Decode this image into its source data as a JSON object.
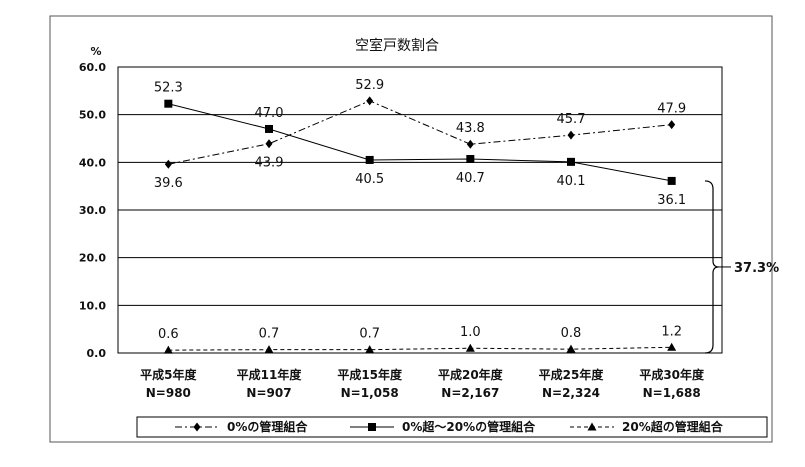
{
  "chart_data": {
    "type": "line",
    "title": "空室戸数割合",
    "ylabel": "%",
    "ylim": [
      0,
      60
    ],
    "yticks": [
      "0.0",
      "10.0",
      "20.0",
      "30.0",
      "40.0",
      "50.0",
      "60.0"
    ],
    "categories": [
      "平成5年度",
      "平成11年度",
      "平成15年度",
      "平成20年度",
      "平成25年度",
      "平成30年度"
    ],
    "category_sublabels": [
      "N=980",
      "N=907",
      "N=1,058",
      "N=2,167",
      "N=2,324",
      "N=1,688"
    ],
    "grid": true,
    "legend_position": "bottom",
    "series": [
      {
        "name": "0%の管理組合",
        "marker": "diamond",
        "line_style": "dash-dot",
        "values": [
          39.6,
          43.9,
          52.9,
          43.8,
          45.7,
          47.9
        ],
        "labels": [
          "39.6",
          "43.9",
          "52.9",
          "43.8",
          "45.7",
          "47.9"
        ],
        "label_side": [
          "below",
          "below",
          "above",
          "above",
          "above",
          "above"
        ]
      },
      {
        "name": "0%超～20%の管理組合",
        "marker": "square",
        "line_style": "solid",
        "values": [
          52.3,
          47.0,
          40.5,
          40.7,
          40.1,
          36.1
        ],
        "labels": [
          "52.3",
          "47.0",
          "40.5",
          "40.7",
          "40.1",
          "36.1"
        ],
        "label_side": [
          "above",
          "above",
          "below",
          "below",
          "below",
          "below"
        ]
      },
      {
        "name": "20%超の管理組合",
        "marker": "triangle",
        "line_style": "dashed",
        "values": [
          0.6,
          0.7,
          0.7,
          1.0,
          0.8,
          1.2
        ],
        "labels": [
          "0.6",
          "0.7",
          "0.7",
          "1.0",
          "0.8",
          "1.2"
        ],
        "label_side": [
          "above",
          "above",
          "above",
          "above",
          "above",
          "above"
        ]
      }
    ],
    "annotation": {
      "text": "37.3%",
      "brace_from": 0,
      "brace_to": 36.1
    }
  }
}
